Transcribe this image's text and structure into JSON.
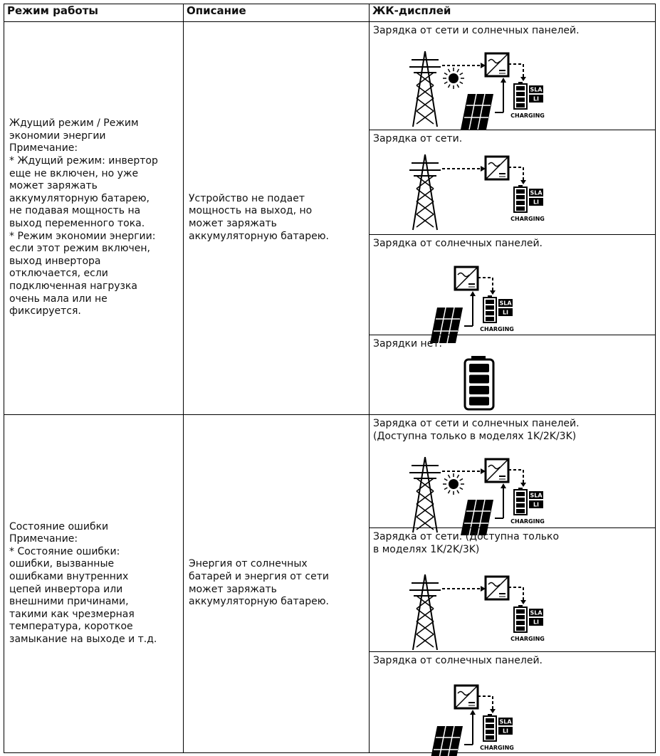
{
  "table": {
    "headers": [
      "Режим работы",
      "Описание",
      "ЖК-дисплей"
    ],
    "rows": [
      {
        "mode": [
          "Ждущий режим / Режим",
          "экономии энергии",
          "Примечание:",
          "* Ждущий режим: инвертор",
          "еще не включен, но уже",
          "может заряжать",
          "аккумуляторную батарею,",
          "не подавая мощность на",
          "выход переменного тока.",
          "* Режим экономии энергии:",
          "если этот режим включен,",
          "выход инвертора",
          "отключается, если",
          "подключенная нагрузка",
          "очень мала или не",
          "фиксируется."
        ],
        "description": [
          "Устройство не подает",
          "мощность на выход, но",
          "может заряжать",
          "аккумуляторную батарею."
        ],
        "displays": [
          {
            "caption": [
              "Зарядка от сети и  солнечных панелей."
            ]
          },
          {
            "caption": [
              "Зарядка от сети."
            ]
          },
          {
            "caption": [
              "Зарядка от солнечных панелей."
            ]
          },
          {
            "caption": [
              "Зарядки нет."
            ]
          }
        ]
      },
      {
        "mode": [
          "Состояние ошибки",
          "Примечание:",
          "* Состояние ошибки:",
          "ошибки, вызванные",
          "ошибками внутренних",
          "цепей инвертора или",
          "внешними причинами,",
          "такими как чрезмерная",
          "температура, короткое",
          "замыкание на выходе и т.д."
        ],
        "description": [
          "Энергия от солнечных",
          "батарей и энергия от сети",
          "может заряжать",
          "аккумуляторную батарею."
        ],
        "displays": [
          {
            "caption": [
              "Зарядка от сети и  солнечных панелей.",
              "(Доступна только в моделях 1K/2K/3K)"
            ]
          },
          {
            "caption": [
              "Зарядка от сети. (Доступна только",
              "в моделях 1K/2K/3K)"
            ]
          },
          {
            "caption": [
              "Зарядка от солнечных панелей."
            ]
          }
        ]
      }
    ]
  },
  "icon": {
    "sla": "SLA",
    "li": "LI",
    "charging": "CHARGING"
  }
}
